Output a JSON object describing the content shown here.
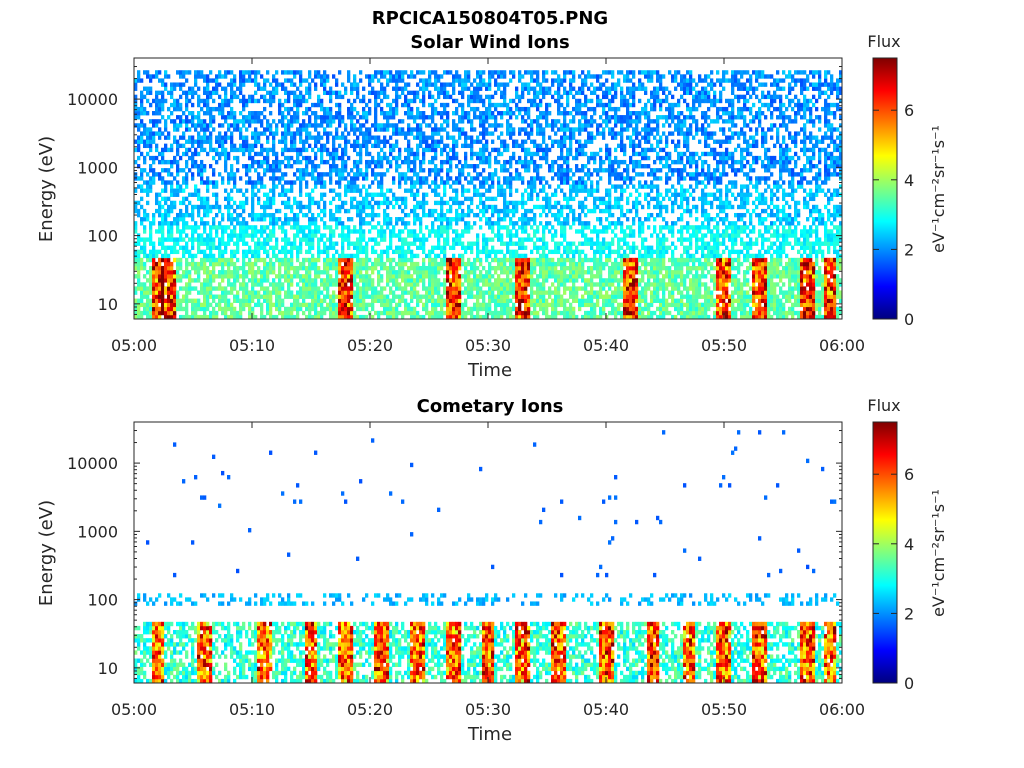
{
  "figure_title": "RPCICA150804T05.PNG",
  "colorbar": {
    "title": "Flux",
    "unit_label": "eV⁻¹cm⁻²sr⁻¹s⁻¹",
    "ticks": [
      "0",
      "2",
      "4",
      "6"
    ],
    "range": [
      0,
      7.5
    ],
    "colormap": "jet",
    "colors": [
      "#00007f",
      "#0000ff",
      "#007fff",
      "#00ffff",
      "#7fff7f",
      "#ffff00",
      "#ff7f00",
      "#ff0000",
      "#7f0000"
    ]
  },
  "chart_data": [
    {
      "type": "heatmap",
      "title": "Solar Wind Ions",
      "xlabel": "Time",
      "ylabel": "Energy (eV)",
      "x_ticks": [
        "05:00",
        "05:10",
        "05:20",
        "05:30",
        "05:40",
        "05:50",
        "06:00"
      ],
      "xlim_minutes": [
        0,
        60
      ],
      "y_ticks": [
        "10",
        "100",
        "1000",
        "10000"
      ],
      "ylim": [
        6,
        40000
      ],
      "y_scale": "log",
      "background": "#ffffff",
      "description_bands": [
        {
          "energy_range": [
            600,
            25000
          ],
          "flux_range": [
            1.5,
            2.5
          ],
          "density": 0.55
        },
        {
          "energy_range": [
            150,
            600
          ],
          "flux_range": [
            2,
            2.8
          ],
          "density": 0.5
        },
        {
          "energy_range": [
            45,
            150
          ],
          "flux_range": [
            2.5,
            3.2
          ],
          "density": 0.6
        },
        {
          "energy_range": [
            6,
            45
          ],
          "flux_range": [
            3,
            4
          ],
          "density": 0.75
        }
      ],
      "hotspots_minutes": [
        2,
        3,
        18,
        27,
        33,
        42,
        50,
        53,
        57,
        59
      ]
    },
    {
      "type": "heatmap",
      "title": "Cometary Ions",
      "xlabel": "Time",
      "ylabel": "Energy (eV)",
      "x_ticks": [
        "05:00",
        "05:10",
        "05:20",
        "05:30",
        "05:40",
        "05:50",
        "06:00"
      ],
      "xlim_minutes": [
        0,
        60
      ],
      "y_ticks": [
        "10",
        "100",
        "1000",
        "10000"
      ],
      "ylim": [
        6,
        40000
      ],
      "y_scale": "log",
      "background": "#ffffff",
      "description_bands": [
        {
          "energy_range": [
            200,
            30000
          ],
          "flux_range": [
            1.5,
            1.8
          ],
          "density": 0.01
        },
        {
          "energy_range": [
            80,
            130
          ],
          "flux_range": [
            2,
            2.6
          ],
          "density": 0.3
        },
        {
          "energy_range": [
            6,
            45
          ],
          "flux_range": [
            2.5,
            3.8
          ],
          "density": 0.6
        }
      ],
      "hotspots_minutes": [
        2,
        6,
        11,
        15,
        18,
        21,
        24,
        27,
        30,
        33,
        36,
        40,
        44,
        47,
        50,
        53,
        57,
        59
      ]
    }
  ]
}
